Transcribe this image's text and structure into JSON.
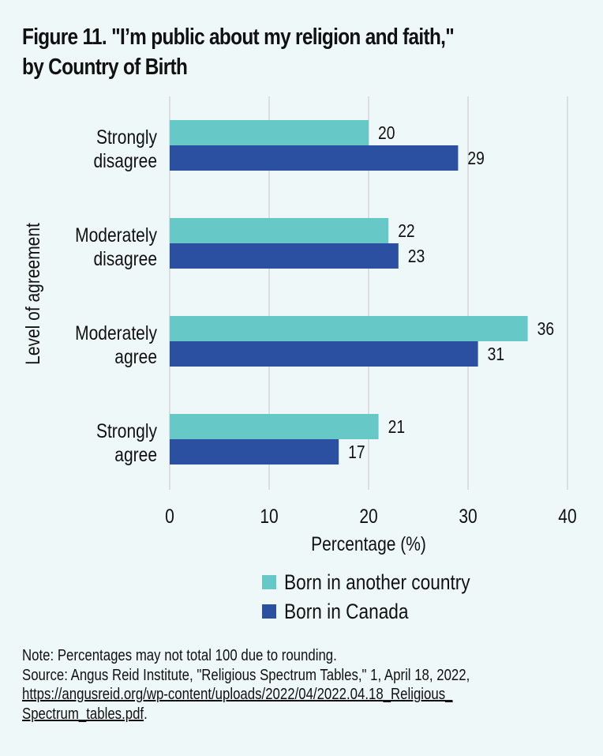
{
  "title_line1": "Figure 11. \"I’m public about my religion and faith,\"",
  "title_line2": "by Country of Birth",
  "notes": {
    "note": "Note: Percentages may not total 100 due to rounding.",
    "source": "Source: Angus Reid Institute, \"Religious Spectrum Tables,\" 1, April 18, 2022,",
    "link_line1": "https://angusreid.org/wp-content/uploads/2022/04/2022.04.18_Religious_",
    "link_line2": "Spectrum_tables.pdf",
    "link_suffix": "."
  },
  "chart_data": {
    "type": "bar",
    "orientation": "horizontal",
    "title": "Figure 11. \"I’m public about my religion and faith,\" by Country of Birth",
    "categories": [
      [
        "Strongly",
        "disagree"
      ],
      [
        "Moderately",
        "disagree"
      ],
      [
        "Moderately",
        "agree"
      ],
      [
        "Strongly",
        "agree"
      ]
    ],
    "series": [
      {
        "name": "Born in another country",
        "color": "#67c8c8",
        "values": [
          20,
          22,
          36,
          21
        ]
      },
      {
        "name": "Born in Canada",
        "color": "#2b4fa1",
        "values": [
          29,
          23,
          31,
          17
        ]
      }
    ],
    "xlabel": "Percentage (%)",
    "ylabel": "Level of agreement",
    "xlim": [
      0,
      40
    ],
    "xticks": [
      0,
      10,
      20,
      30,
      40
    ],
    "grid": true,
    "legend_position": "bottom"
  }
}
